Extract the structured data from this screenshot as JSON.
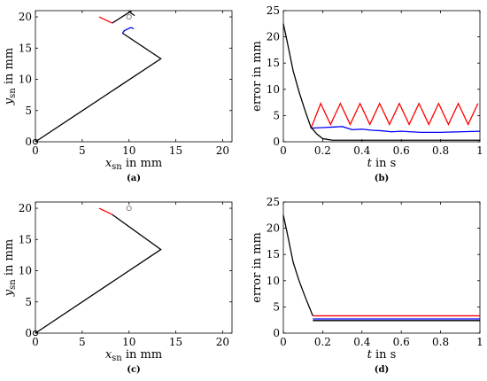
{
  "chart_data": [
    {
      "type": "line",
      "panel": "a",
      "caption": "(a)",
      "xlabel": {
        "main": "x",
        "sub": "sn",
        "unit": " in mm"
      },
      "ylabel": {
        "main": "y",
        "sub": "sn",
        "unit": " in mm"
      },
      "xlim": [
        0,
        21
      ],
      "ylim": [
        0,
        21
      ],
      "xticks": [
        "0",
        "5",
        "10",
        "15",
        "20"
      ],
      "yticks": [
        "0",
        "5",
        "10",
        "15",
        "20"
      ],
      "grid": false,
      "series": [
        {
          "color": "#000000",
          "x": [
            0,
            13.4,
            9.3
          ],
          "y": [
            0,
            13.3,
            17.4
          ]
        },
        {
          "color": "#000000",
          "x": [
            8.2,
            10.2,
            10.2,
            10.6
          ],
          "y": [
            19.0,
            20.9,
            20.6,
            20.2
          ]
        },
        {
          "color": "#ff0000",
          "x": [
            6.8,
            8.2
          ],
          "y": [
            20.0,
            19.0
          ]
        },
        {
          "color": "#0000ff",
          "x": [
            9.3,
            9.5,
            10.2,
            10.5
          ],
          "y": [
            17.4,
            17.8,
            18.3,
            18.1
          ]
        }
      ],
      "markers": [
        {
          "shape": "open-circle",
          "color": "#888888",
          "x": 10.0,
          "y": 20.0
        },
        {
          "shape": "open-circle",
          "color": "#000000",
          "x": 0.0,
          "y": 0.0
        }
      ]
    },
    {
      "type": "line",
      "panel": "b",
      "caption": "(b)",
      "xlabel": {
        "main": "t",
        "sub": "",
        "unit": " in s"
      },
      "ylabel": {
        "main": "error in mm",
        "sub": "",
        "unit": ""
      },
      "xlim": [
        0,
        1
      ],
      "ylim": [
        0,
        25
      ],
      "xticks": [
        "0",
        "0.2",
        "0.4",
        "0.6",
        "0.8",
        "1"
      ],
      "yticks": [
        "0",
        "5",
        "10",
        "15",
        "20",
        "25"
      ],
      "grid": false,
      "series": [
        {
          "color": "#ff0000",
          "x": [
            0.14,
            0.19,
            0.24,
            0.29,
            0.34,
            0.39,
            0.44,
            0.49,
            0.54,
            0.59,
            0.64,
            0.69,
            0.74,
            0.79,
            0.84,
            0.89,
            0.94,
            0.99
          ],
          "y": [
            2.5,
            7.3,
            3.3,
            7.3,
            3.3,
            7.3,
            3.3,
            7.3,
            3.3,
            7.3,
            3.3,
            7.3,
            3.3,
            7.3,
            3.3,
            7.3,
            3.3,
            7.3
          ]
        },
        {
          "color": "#0000ff",
          "x": [
            0.14,
            0.2,
            0.25,
            0.3,
            0.35,
            0.4,
            0.45,
            0.5,
            0.55,
            0.6,
            0.7,
            0.8,
            0.9,
            1.0
          ],
          "y": [
            2.6,
            2.7,
            2.8,
            2.9,
            2.3,
            2.4,
            2.2,
            2.1,
            1.9,
            2.0,
            1.8,
            1.8,
            1.9,
            2.0
          ]
        },
        {
          "color": "#000000",
          "x": [
            0,
            0.02,
            0.05,
            0.08,
            0.11,
            0.14,
            0.17,
            0.2,
            0.25,
            1.0
          ],
          "y": [
            22.5,
            19.0,
            13.5,
            9.5,
            6.0,
            2.8,
            1.5,
            0.6,
            0.3,
            0.3
          ]
        }
      ]
    },
    {
      "type": "line",
      "panel": "c",
      "caption": "(c)",
      "xlabel": {
        "main": "x",
        "sub": "sn",
        "unit": " in mm"
      },
      "ylabel": {
        "main": "y",
        "sub": "sn",
        "unit": " in mm"
      },
      "xlim": [
        0,
        21
      ],
      "ylim": [
        0,
        21
      ],
      "xticks": [
        "0",
        "5",
        "10",
        "15",
        "20"
      ],
      "yticks": [
        "0",
        "5",
        "10",
        "15",
        "20"
      ],
      "grid": false,
      "series": [
        {
          "color": "#000000",
          "x": [
            0,
            13.4,
            8.2
          ],
          "y": [
            0,
            13.4,
            19.0
          ]
        },
        {
          "color": "#ff0000",
          "x": [
            6.8,
            8.2
          ],
          "y": [
            20.0,
            19.0
          ]
        }
      ],
      "markers": [
        {
          "shape": "open-circle",
          "color": "#888888",
          "x": 10.0,
          "y": 20.0
        },
        {
          "shape": "open-circle",
          "color": "#000000",
          "x": 0.0,
          "y": 0.0
        }
      ]
    },
    {
      "type": "line",
      "panel": "d",
      "caption": "(d)",
      "xlabel": {
        "main": "t",
        "sub": "",
        "unit": " in s"
      },
      "ylabel": {
        "main": "error in mm",
        "sub": "",
        "unit": ""
      },
      "xlim": [
        0,
        1
      ],
      "ylim": [
        0,
        25
      ],
      "xticks": [
        "0",
        "0.2",
        "0.4",
        "0.6",
        "0.8",
        "1"
      ],
      "yticks": [
        "0",
        "5",
        "10",
        "15",
        "20",
        "25"
      ],
      "grid": false,
      "series": [
        {
          "color": "#000000",
          "x": [
            0,
            0.02,
            0.05,
            0.08,
            0.11,
            0.15
          ],
          "y": [
            22.5,
            19.0,
            13.5,
            10.0,
            7.0,
            3.3
          ]
        },
        {
          "color": "#ff0000",
          "x": [
            0.15,
            1.0
          ],
          "y": [
            3.3,
            3.3
          ]
        },
        {
          "color": "#0000ff",
          "x": [
            0.15,
            1.0
          ],
          "y": [
            2.7,
            2.7
          ]
        },
        {
          "color": "#000000",
          "x": [
            0.15,
            1.0
          ],
          "y": [
            2.4,
            2.4
          ]
        }
      ]
    }
  ]
}
